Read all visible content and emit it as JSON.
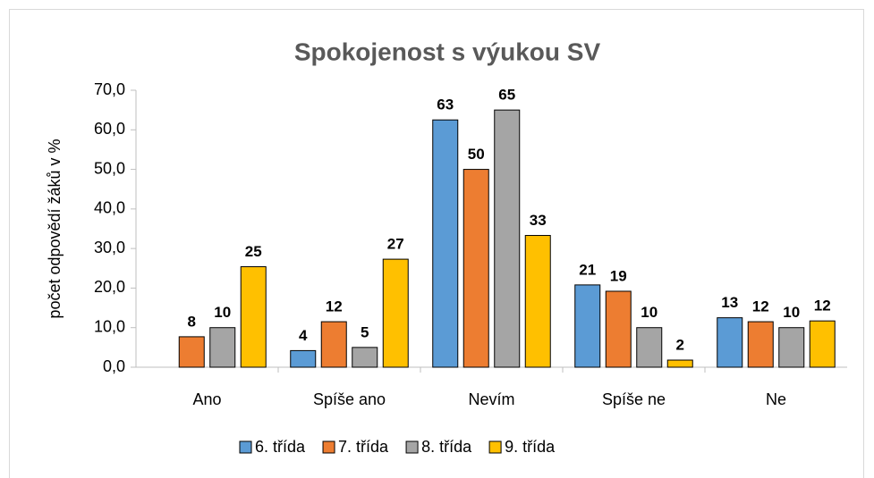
{
  "chart_data": {
    "type": "bar",
    "title": "Spokojenost s výukou SV",
    "y_label": "počet odpovědí žáků v %",
    "categories": [
      "Ano",
      "Spíše ano",
      "Nevím",
      "Spíše ne",
      "Ne"
    ],
    "series": [
      {
        "name": "6. třída",
        "color": "#5b9bd5",
        "values": [
          null,
          4.2,
          62.5,
          20.8,
          12.5
        ],
        "value_labels": [
          null,
          "4",
          "63",
          "21",
          "13"
        ]
      },
      {
        "name": "7. třída",
        "color": "#ed7d31",
        "values": [
          7.7,
          11.5,
          50,
          19.2,
          11.5
        ],
        "value_labels": [
          "8",
          "12",
          "50",
          "19",
          "12"
        ]
      },
      {
        "name": "8. třída",
        "color": "#a5a5a5",
        "values": [
          10,
          5,
          65,
          10,
          10
        ],
        "value_labels": [
          "10",
          "5",
          "65",
          "10",
          "10"
        ]
      },
      {
        "name": "9. třída",
        "color": "#ffc000",
        "values": [
          25.4,
          27.3,
          33.3,
          1.8,
          11.7
        ],
        "value_labels": [
          "25",
          "27",
          "33",
          "2",
          "12"
        ]
      }
    ],
    "ylim": [
      0,
      70
    ],
    "yticks": [
      {
        "value": 0,
        "label": "0,0"
      },
      {
        "value": 10,
        "label": "10,0"
      },
      {
        "value": 20,
        "label": "20,0"
      },
      {
        "value": 30,
        "label": "30,0"
      },
      {
        "value": 40,
        "label": "40,0"
      },
      {
        "value": 50,
        "label": "50,0"
      },
      {
        "value": 60,
        "label": "60,0"
      },
      {
        "value": 70,
        "label": "70,0"
      }
    ],
    "legend": "bottom"
  }
}
